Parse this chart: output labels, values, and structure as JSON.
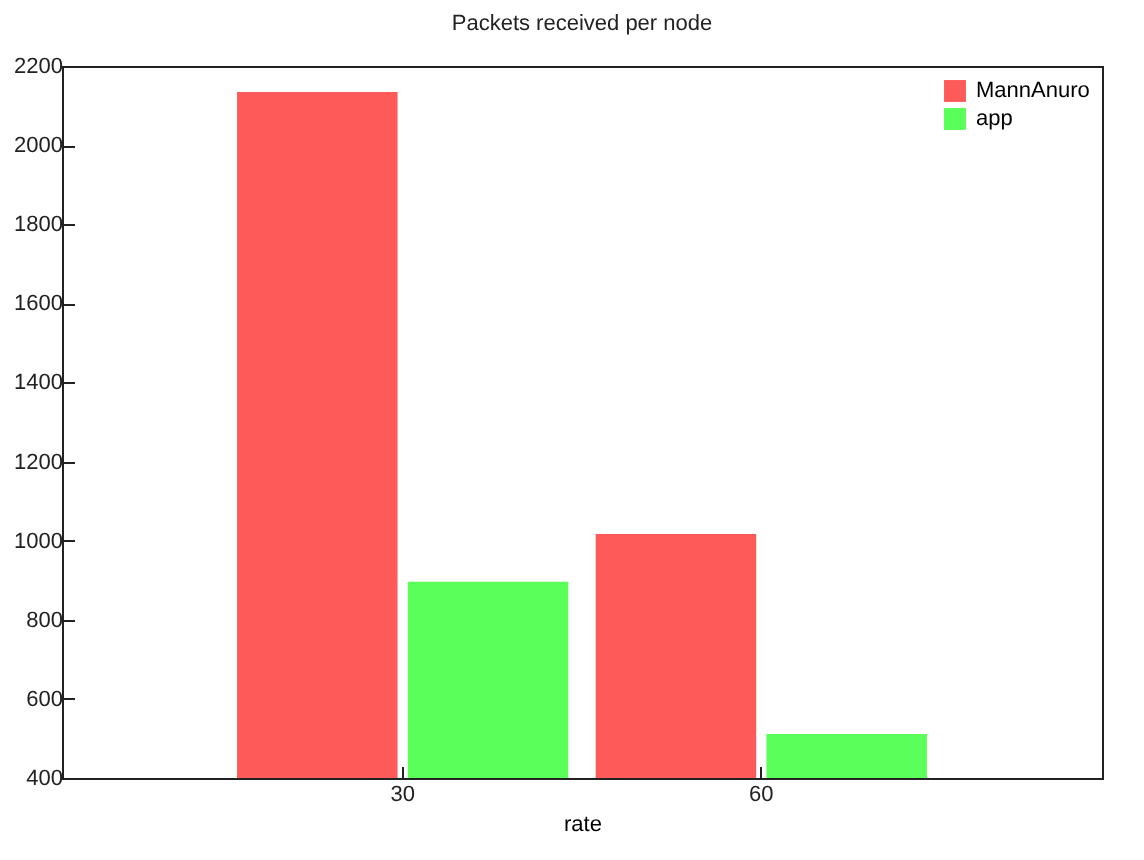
{
  "chart_data": {
    "type": "bar",
    "title": "Packets received per node",
    "xlabel": "rate",
    "categories": [
      "30",
      "60"
    ],
    "series": [
      {
        "name": "MannAnuro",
        "color": "#ff5a5a",
        "values": [
          2134,
          1017
        ]
      },
      {
        "name": "app",
        "color": "#5aff5a",
        "values": [
          896,
          511
        ]
      }
    ],
    "ylim": [
      400,
      2200
    ],
    "yticks": [
      400,
      600,
      800,
      1000,
      1200,
      1400,
      1600,
      1800,
      2000,
      2200
    ],
    "grid": false,
    "legend": "top right"
  }
}
